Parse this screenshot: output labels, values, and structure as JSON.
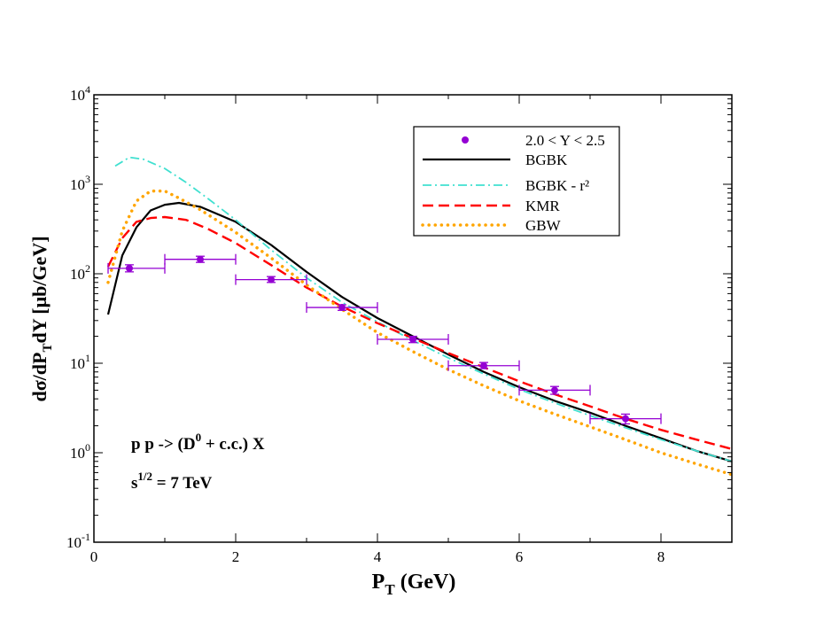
{
  "chart_data": {
    "type": "line",
    "xlim": [
      0,
      9
    ],
    "ylim": [
      0.1,
      10000
    ],
    "yscale": "log",
    "grid": false,
    "legend_position": "top-right",
    "x_ticks": [
      "0",
      "2",
      "4",
      "6",
      "8"
    ],
    "y_ticks": [
      {
        "base": "10",
        "exp": "-1"
      },
      {
        "base": "10",
        "exp": "0"
      },
      {
        "base": "10",
        "exp": "1"
      },
      {
        "base": "10",
        "exp": "2"
      },
      {
        "base": "10",
        "exp": "3"
      },
      {
        "base": "10",
        "exp": "4"
      }
    ],
    "xlabel": {
      "main": "P",
      "sub": "T",
      "rest": " (GeV)"
    },
    "ylabel": {
      "p1": "dσ/dP",
      "sub": "T",
      "p2": "dY [μb/GeV]"
    },
    "annotations": {
      "line1": {
        "main": "p p -> (D",
        "sup": "0",
        "rest": " + c.c.) X"
      },
      "line2": {
        "main": "s",
        "sup": "1/2",
        "rest": " = 7 TeV"
      }
    },
    "data_series": {
      "name": "2.0 < Y < 2.5",
      "color": "#9400d3",
      "points": [
        {
          "x": 0.5,
          "y": 115,
          "xerr": [
            0.2,
            1.0
          ],
          "yerr": [
            105,
            126
          ]
        },
        {
          "x": 1.5,
          "y": 145,
          "xerr": [
            1.0,
            2.0
          ],
          "yerr": [
            134,
            157
          ]
        },
        {
          "x": 2.5,
          "y": 86,
          "xerr": [
            2.0,
            3.0
          ],
          "yerr": [
            80,
            93
          ]
        },
        {
          "x": 3.5,
          "y": 42,
          "xerr": [
            3.0,
            4.0
          ],
          "yerr": [
            39,
            45
          ]
        },
        {
          "x": 4.5,
          "y": 18.5,
          "xerr": [
            4.0,
            5.0
          ],
          "yerr": [
            17,
            20
          ]
        },
        {
          "x": 5.5,
          "y": 9.4,
          "xerr": [
            5.0,
            6.0
          ],
          "yerr": [
            8.7,
            10.2
          ]
        },
        {
          "x": 6.5,
          "y": 5.0,
          "xerr": [
            6.0,
            7.0
          ],
          "yerr": [
            4.5,
            5.5
          ]
        },
        {
          "x": 7.5,
          "y": 2.4,
          "xerr": [
            7.0,
            8.0
          ],
          "yerr": [
            2.1,
            2.7
          ]
        }
      ]
    },
    "series": [
      {
        "name": "BGBK",
        "color": "#000000",
        "style": "solid",
        "x": [
          0.2,
          0.4,
          0.6,
          0.8,
          1.0,
          1.2,
          1.5,
          2.0,
          2.5,
          3.0,
          3.5,
          4.0,
          4.5,
          5.0,
          5.5,
          6.0,
          6.5,
          7.0,
          7.5,
          8.0,
          8.5,
          9.0
        ],
        "y": [
          35,
          160,
          330,
          510,
          590,
          620,
          560,
          380,
          210,
          105,
          55,
          32,
          20,
          12.5,
          8.0,
          5.4,
          3.8,
          2.8,
          2.0,
          1.45,
          1.05,
          0.8
        ]
      },
      {
        "name": "BGBK - r²",
        "color": "#40e0d0",
        "style": "dashdot",
        "x": [
          0.3,
          0.5,
          0.7,
          1.0,
          1.3,
          1.6,
          2.0,
          2.5,
          3.0,
          3.5,
          4.0,
          4.5,
          5.0,
          5.5,
          6.0,
          6.5,
          7.0,
          7.5,
          8.0,
          8.5,
          9.0
        ],
        "y": [
          1600,
          2000,
          1900,
          1500,
          1050,
          700,
          400,
          185,
          90,
          48,
          29,
          18,
          11.5,
          7.6,
          5.1,
          3.6,
          2.6,
          1.9,
          1.4,
          1.05,
          0.8
        ]
      },
      {
        "name": "KMR",
        "color": "#ff0000",
        "style": "dashed",
        "x": [
          0.2,
          0.4,
          0.6,
          0.8,
          1.0,
          1.3,
          1.6,
          2.0,
          2.5,
          3.0,
          3.5,
          4.0,
          4.5,
          5.0,
          5.5,
          6.0,
          6.5,
          7.0,
          7.5,
          8.0,
          8.5,
          9.0
        ],
        "y": [
          120,
          250,
          380,
          420,
          430,
          400,
          320,
          220,
          125,
          70,
          43,
          28,
          19,
          13,
          9.0,
          6.3,
          4.5,
          3.3,
          2.4,
          1.8,
          1.4,
          1.1
        ]
      },
      {
        "name": "GBW",
        "color": "#ffa500",
        "style": "dotted",
        "x": [
          0.2,
          0.4,
          0.6,
          0.8,
          1.0,
          1.2,
          1.5,
          2.0,
          2.5,
          3.0,
          3.5,
          4.0,
          4.5,
          5.0,
          5.5,
          6.0,
          6.5,
          7.0,
          7.5,
          8.0,
          8.5,
          9.0
        ],
        "y": [
          80,
          300,
          650,
          840,
          840,
          700,
          520,
          290,
          150,
          75,
          40,
          22,
          13.5,
          8.5,
          5.6,
          3.8,
          2.7,
          1.95,
          1.4,
          1.0,
          0.75,
          0.57
        ]
      }
    ]
  }
}
